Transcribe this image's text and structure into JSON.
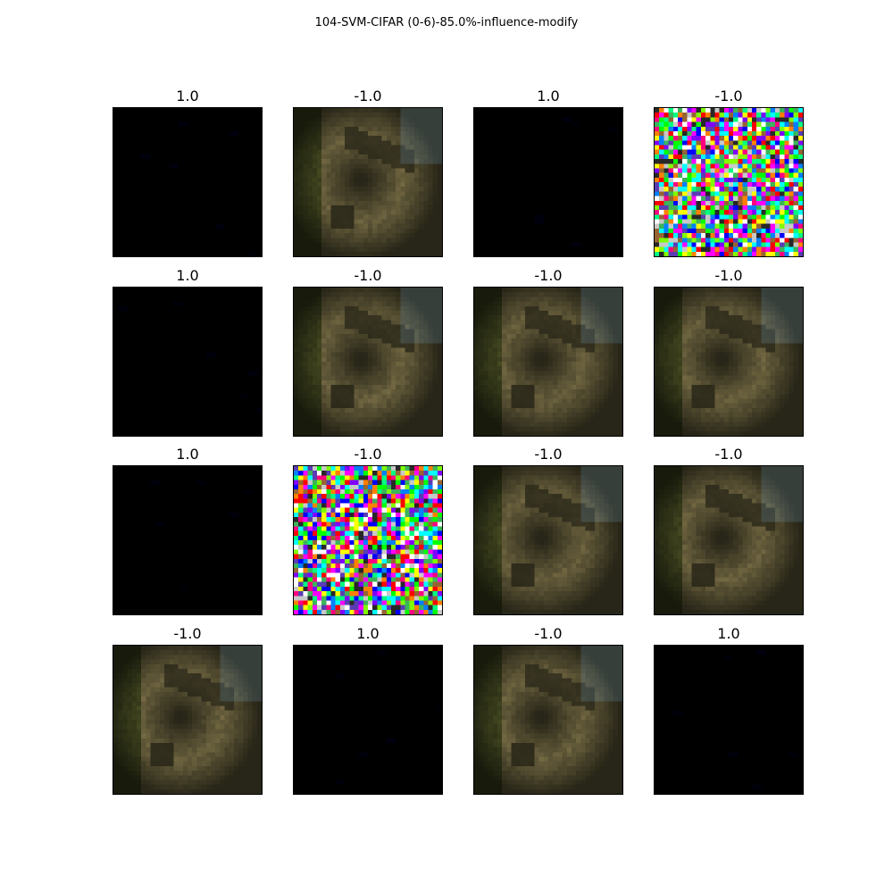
{
  "figure": {
    "title": "104-SVM-CIFAR (0-6)-85.0%-influence-modify"
  },
  "panels": [
    {
      "label": "1.0",
      "kind": "dark"
    },
    {
      "label": "-1.0",
      "kind": "blurry"
    },
    {
      "label": "1.0",
      "kind": "dark"
    },
    {
      "label": "-1.0",
      "kind": "noise"
    },
    {
      "label": "1.0",
      "kind": "dark"
    },
    {
      "label": "-1.0",
      "kind": "blurry"
    },
    {
      "label": "-1.0",
      "kind": "blurry"
    },
    {
      "label": "-1.0",
      "kind": "blurry"
    },
    {
      "label": "1.0",
      "kind": "dark"
    },
    {
      "label": "-1.0",
      "kind": "noise"
    },
    {
      "label": "-1.0",
      "kind": "blurry"
    },
    {
      "label": "-1.0",
      "kind": "blurry"
    },
    {
      "label": "-1.0",
      "kind": "blurry"
    },
    {
      "label": "1.0",
      "kind": "dark"
    },
    {
      "label": "-1.0",
      "kind": "blurry"
    },
    {
      "label": "1.0",
      "kind": "dark"
    }
  ]
}
